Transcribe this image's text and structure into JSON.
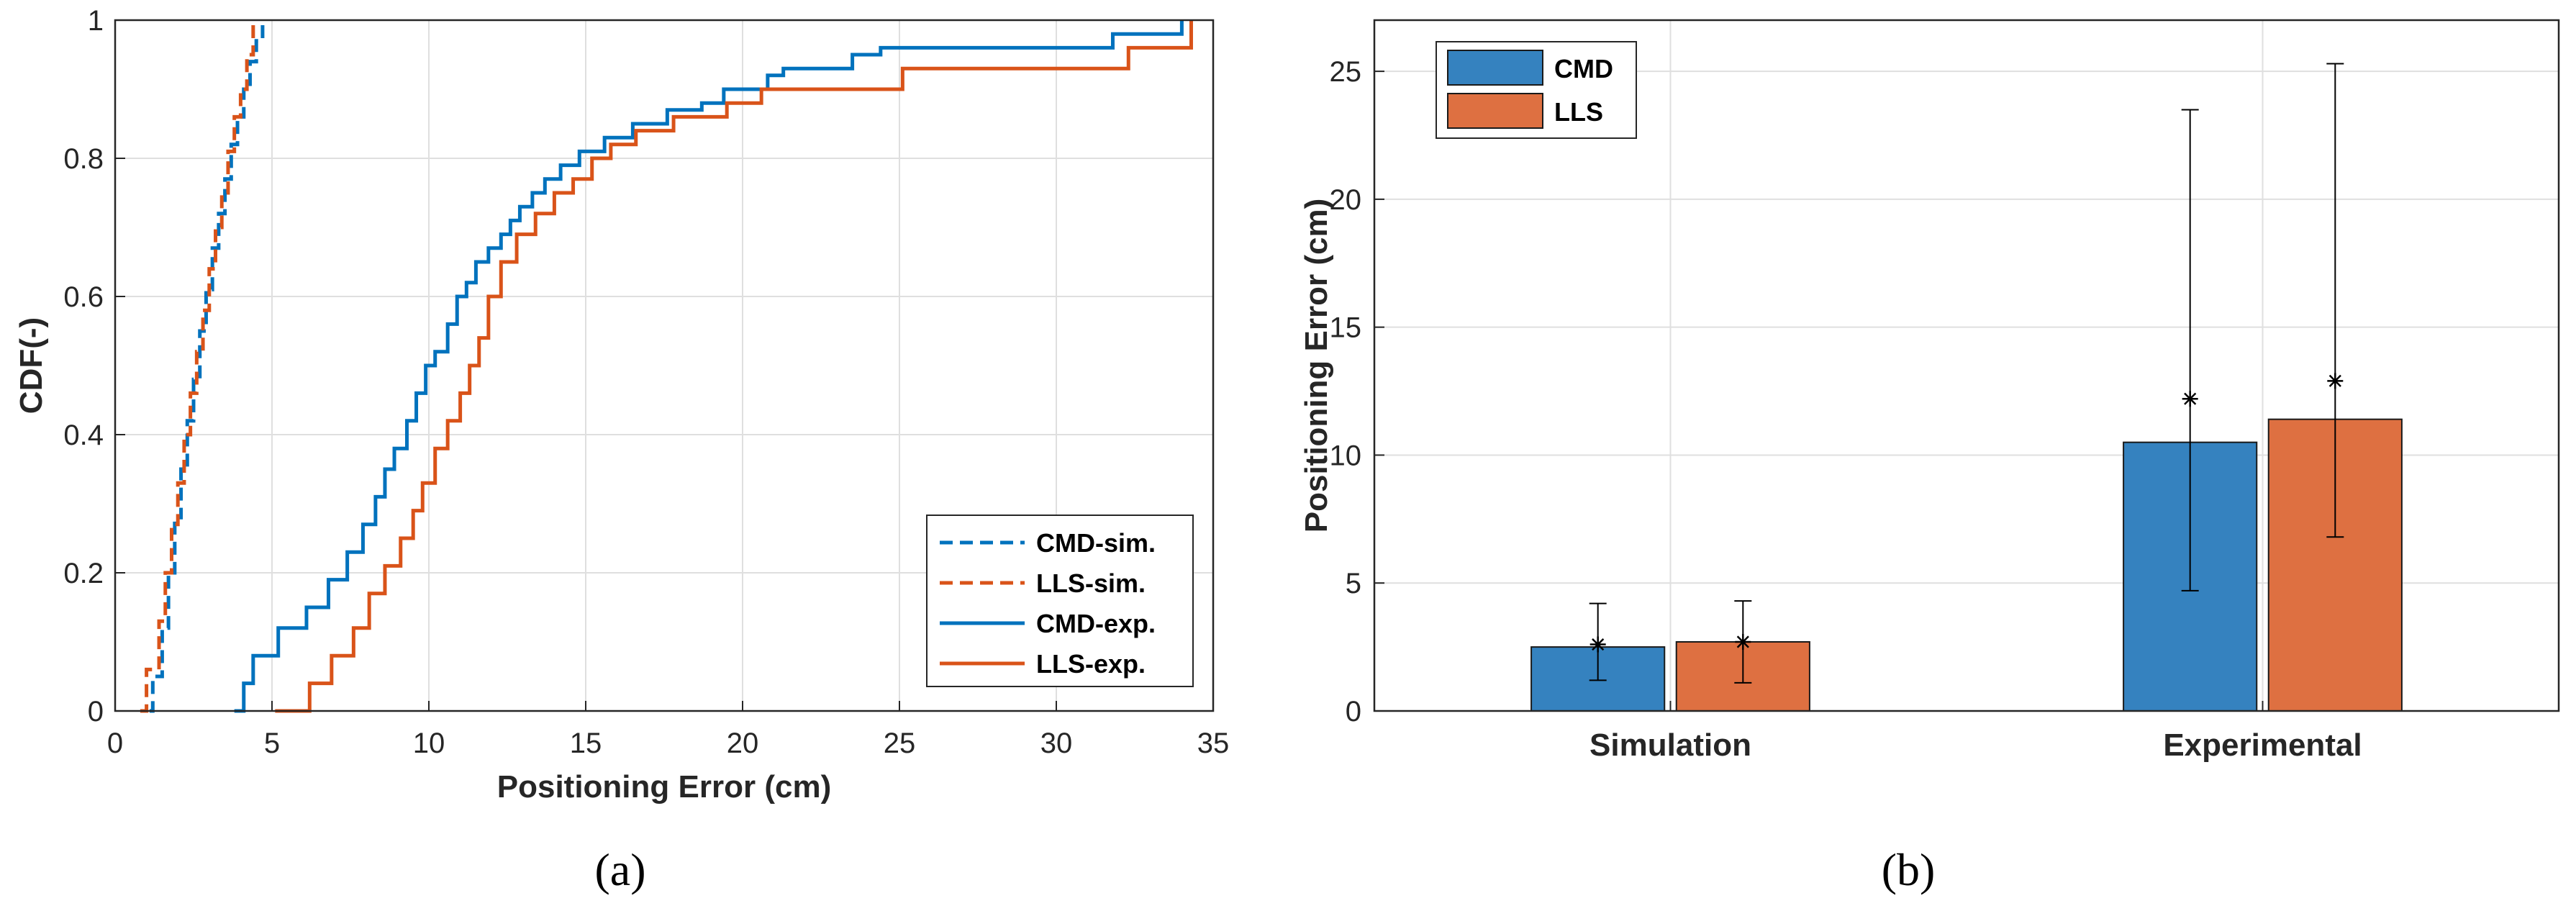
{
  "chart_data": [
    {
      "panel": "(a)",
      "type": "line",
      "xlabel": "Positioning Error (cm)",
      "ylabel": "CDF(-)",
      "xlim": [
        0,
        35
      ],
      "ylim": [
        0,
        1
      ],
      "xticks": [
        "0",
        "5",
        "10",
        "15",
        "20",
        "25",
        "30",
        "35"
      ],
      "yticks": [
        "0",
        "0.2",
        "0.4",
        "0.6",
        "0.8",
        "1"
      ],
      "grid": true,
      "legend_position": "bottom-right",
      "series": [
        {
          "name": "CMD-sim.",
          "style": "dashed",
          "color": "#0072BD",
          "x": [
            1.1,
            1.2,
            1.5,
            1.7,
            1.9,
            2.1,
            2.3,
            2.5,
            2.7,
            2.9,
            3.1,
            3.3,
            3.5,
            3.7,
            3.9,
            4.1,
            4.3,
            4.5,
            4.7
          ],
          "y": [
            0.0,
            0.05,
            0.12,
            0.2,
            0.28,
            0.35,
            0.42,
            0.48,
            0.55,
            0.61,
            0.67,
            0.72,
            0.77,
            0.82,
            0.86,
            0.9,
            0.94,
            0.97,
            1.0
          ]
        },
        {
          "name": "LLS-sim.",
          "style": "dashed",
          "color": "#D95319",
          "x": [
            0.8,
            1.0,
            1.4,
            1.6,
            1.8,
            2.0,
            2.2,
            2.4,
            2.6,
            2.8,
            3.0,
            3.2,
            3.4,
            3.6,
            3.8,
            4.0,
            4.2,
            4.4
          ],
          "y": [
            0.0,
            0.06,
            0.13,
            0.2,
            0.27,
            0.33,
            0.4,
            0.46,
            0.52,
            0.58,
            0.64,
            0.7,
            0.75,
            0.81,
            0.86,
            0.9,
            0.95,
            1.0
          ]
        },
        {
          "name": "CMD-exp.",
          "style": "solid",
          "color": "#0072BD",
          "x": [
            3.8,
            4.1,
            4.4,
            5.2,
            6.1,
            6.8,
            7.4,
            7.9,
            8.3,
            8.6,
            8.9,
            9.3,
            9.6,
            9.9,
            10.2,
            10.6,
            10.9,
            11.2,
            11.5,
            11.9,
            12.3,
            12.6,
            12.9,
            13.3,
            13.7,
            14.2,
            14.8,
            15.6,
            16.5,
            17.6,
            18.7,
            19.4,
            20.8,
            21.3,
            23.5,
            24.4,
            31.8,
            34.0
          ],
          "y": [
            0.0,
            0.04,
            0.08,
            0.12,
            0.15,
            0.19,
            0.23,
            0.27,
            0.31,
            0.35,
            0.38,
            0.42,
            0.46,
            0.5,
            0.52,
            0.56,
            0.6,
            0.62,
            0.65,
            0.67,
            0.69,
            0.71,
            0.73,
            0.75,
            0.77,
            0.79,
            0.81,
            0.83,
            0.85,
            0.87,
            0.88,
            0.9,
            0.92,
            0.93,
            0.95,
            0.96,
            0.98,
            1.0
          ]
        },
        {
          "name": "LLS-exp.",
          "style": "solid",
          "color": "#D95319",
          "x": [
            5.1,
            6.2,
            6.9,
            7.6,
            8.1,
            8.6,
            9.1,
            9.5,
            9.8,
            10.2,
            10.6,
            11.0,
            11.3,
            11.6,
            11.9,
            12.3,
            12.8,
            13.4,
            14.0,
            14.6,
            15.2,
            15.8,
            16.6,
            17.8,
            19.5,
            20.6,
            25.1,
            32.3,
            34.3
          ],
          "y": [
            0.0,
            0.04,
            0.08,
            0.12,
            0.17,
            0.21,
            0.25,
            0.29,
            0.33,
            0.38,
            0.42,
            0.46,
            0.5,
            0.54,
            0.6,
            0.65,
            0.69,
            0.72,
            0.75,
            0.77,
            0.8,
            0.82,
            0.84,
            0.86,
            0.88,
            0.9,
            0.93,
            0.96,
            1.0
          ]
        }
      ]
    },
    {
      "panel": "(b)",
      "type": "bar",
      "ylabel": "Positioning Error (cm)",
      "categories": [
        "Simulation",
        "Experimental"
      ],
      "ylim": [
        0,
        27
      ],
      "yticks": [
        "0",
        "5",
        "10",
        "15",
        "20",
        "25"
      ],
      "grid": true,
      "legend_position": "top-left",
      "series": [
        {
          "name": "CMD",
          "color": "#3582BF",
          "values": [
            2.5,
            10.5
          ],
          "marker": [
            2.6,
            12.2
          ],
          "err_low": [
            1.2,
            4.7
          ],
          "err_high": [
            4.2,
            23.5
          ]
        },
        {
          "name": "LLS",
          "color": "#DE7041",
          "values": [
            2.7,
            11.4
          ],
          "marker": [
            2.7,
            12.9
          ],
          "err_low": [
            1.1,
            6.8
          ],
          "err_high": [
            4.3,
            25.3
          ]
        }
      ]
    }
  ]
}
